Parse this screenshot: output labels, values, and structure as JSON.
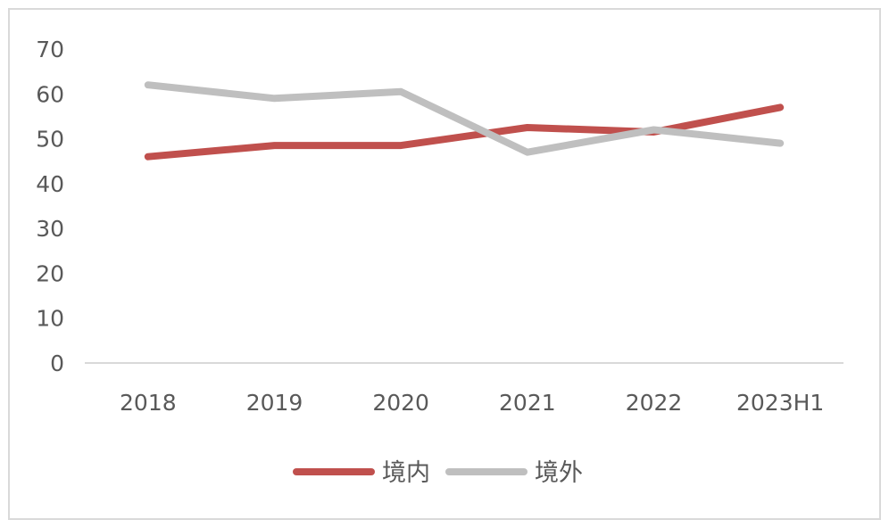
{
  "chart_data": {
    "type": "line",
    "title": "",
    "xlabel": "",
    "ylabel": "",
    "categories": [
      "2018",
      "2019",
      "2020",
      "2021",
      "2022",
      "2023H1"
    ],
    "ylim": [
      0,
      70
    ],
    "yticks": [
      0,
      10,
      20,
      30,
      40,
      50,
      60,
      70
    ],
    "grid": false,
    "legend_position": "bottom",
    "series": [
      {
        "name": "境内",
        "color": "#c0504d",
        "values": [
          46,
          48.5,
          48.5,
          52.5,
          51.5,
          57
        ]
      },
      {
        "name": "境外",
        "color": "#bfbfbf",
        "values": [
          62,
          59,
          60.5,
          47,
          52,
          49
        ]
      }
    ]
  }
}
